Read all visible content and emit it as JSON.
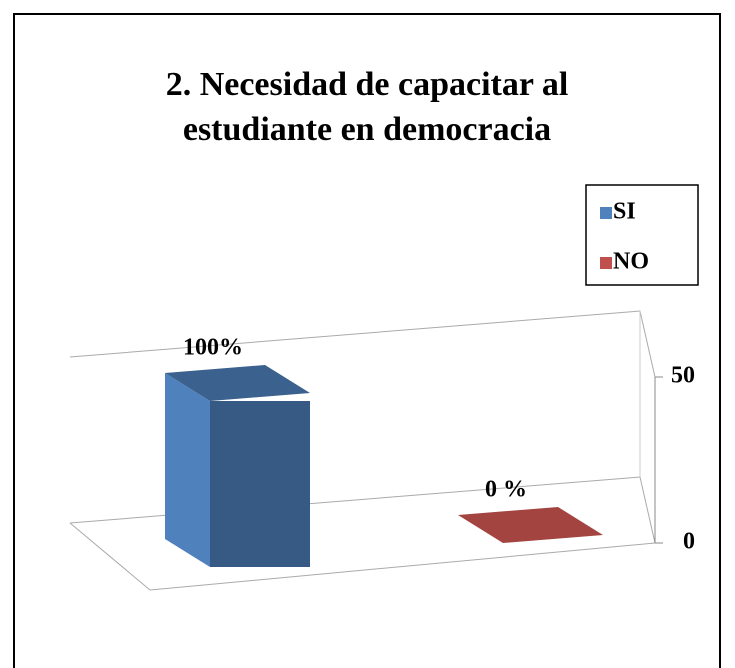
{
  "chart_data": {
    "type": "bar3d",
    "title": "2. Necesidad de capacitar al estudiante en democracia",
    "series": [
      {
        "name": "SI",
        "color": "#4f81bd",
        "values": [
          50
        ],
        "value_labels": [
          "100%"
        ]
      },
      {
        "name": "NO",
        "color": "#c0504d",
        "values": [
          0
        ],
        "value_labels": [
          "0 %"
        ]
      }
    ],
    "ylim": [
      0,
      50
    ],
    "yticks": [
      0,
      50
    ],
    "grid": true,
    "legend": "upper right"
  }
}
